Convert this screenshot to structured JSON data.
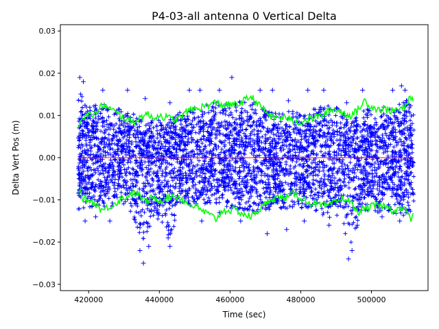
{
  "chart_data": {
    "type": "scatter",
    "title": "P4-03-all antenna 0 Vertical Delta",
    "xlabel": "Time (sec)",
    "ylabel": "Delta Vert Pos (m)",
    "xlim": [
      412000,
      516000
    ],
    "ylim": [
      -0.0315,
      0.0315
    ],
    "x_ticks": [
      420000,
      440000,
      460000,
      480000,
      500000
    ],
    "x_tick_labels": [
      "420000",
      "440000",
      "460000",
      "480000",
      "500000"
    ],
    "y_ticks": [
      -0.03,
      -0.02,
      -0.01,
      0.0,
      0.01,
      0.02,
      0.03
    ],
    "y_tick_labels": [
      "−0.03",
      "−0.02",
      "−0.01",
      "0.00",
      "0.01",
      "0.02",
      "0.03"
    ],
    "grid": false,
    "data_x_range": [
      417000,
      512000
    ],
    "series": [
      {
        "role": "vertical delta points",
        "marker": "+",
        "color": "#0000ff",
        "spread_profile": {
          "x": [
            417000,
            420000,
            425000,
            430000,
            433000,
            435000,
            438000,
            440000,
            443000,
            446000,
            450000,
            455000,
            460000,
            465000,
            470000,
            475000,
            480000,
            485000,
            489000,
            492000,
            494000,
            497000,
            500000,
            505000,
            510000,
            512000
          ],
          "upper": [
            0.016,
            0.012,
            0.013,
            0.011,
            0.011,
            0.009,
            0.009,
            0.009,
            0.009,
            0.011,
            0.012,
            0.013,
            0.013,
            0.014,
            0.012,
            0.011,
            0.011,
            0.012,
            0.013,
            0.011,
            0.009,
            0.011,
            0.012,
            0.012,
            0.014,
            0.012
          ],
          "lower": [
            -0.013,
            -0.012,
            -0.012,
            -0.011,
            -0.015,
            -0.02,
            -0.016,
            -0.015,
            -0.019,
            -0.012,
            -0.011,
            -0.011,
            -0.012,
            -0.013,
            -0.013,
            -0.012,
            -0.012,
            -0.013,
            -0.015,
            -0.018,
            -0.021,
            -0.014,
            -0.013,
            -0.013,
            -0.014,
            -0.012
          ]
        },
        "outliers": [
          {
            "x": 417500,
            "y": 0.019
          },
          {
            "x": 418500,
            "y": 0.018
          },
          {
            "x": 424000,
            "y": 0.016
          },
          {
            "x": 431000,
            "y": 0.016
          },
          {
            "x": 436000,
            "y": 0.014
          },
          {
            "x": 443000,
            "y": 0.013
          },
          {
            "x": 448500,
            "y": 0.016
          },
          {
            "x": 451500,
            "y": 0.016
          },
          {
            "x": 457000,
            "y": 0.016
          },
          {
            "x": 460500,
            "y": 0.019
          },
          {
            "x": 468500,
            "y": 0.016
          },
          {
            "x": 472000,
            "y": 0.016
          },
          {
            "x": 476500,
            "y": 0.0135
          },
          {
            "x": 482000,
            "y": 0.016
          },
          {
            "x": 486500,
            "y": 0.016
          },
          {
            "x": 493000,
            "y": 0.013
          },
          {
            "x": 497500,
            "y": 0.016
          },
          {
            "x": 506000,
            "y": 0.016
          },
          {
            "x": 508500,
            "y": 0.017
          },
          {
            "x": 509500,
            "y": 0.016
          },
          {
            "x": 419000,
            "y": -0.015
          },
          {
            "x": 422000,
            "y": -0.014
          },
          {
            "x": 426000,
            "y": -0.015
          },
          {
            "x": 434500,
            "y": -0.022
          },
          {
            "x": 435500,
            "y": -0.025
          },
          {
            "x": 437000,
            "y": -0.021
          },
          {
            "x": 442500,
            "y": -0.019
          },
          {
            "x": 443000,
            "y": -0.021
          },
          {
            "x": 452000,
            "y": -0.015
          },
          {
            "x": 457000,
            "y": -0.013
          },
          {
            "x": 463000,
            "y": -0.015
          },
          {
            "x": 470500,
            "y": -0.018
          },
          {
            "x": 476000,
            "y": -0.017
          },
          {
            "x": 481000,
            "y": -0.015
          },
          {
            "x": 488000,
            "y": -0.016
          },
          {
            "x": 493500,
            "y": -0.024
          },
          {
            "x": 494500,
            "y": -0.022
          },
          {
            "x": 496000,
            "y": -0.016
          },
          {
            "x": 503000,
            "y": -0.014
          },
          {
            "x": 508000,
            "y": -0.015
          }
        ]
      },
      {
        "role": "upper envelope",
        "type": "line",
        "color": "#00ff00",
        "x": [
          417000,
          418000,
          420000,
          422000,
          424000,
          426000,
          428000,
          430000,
          432000,
          434000,
          436000,
          438000,
          440000,
          442000,
          444000,
          446000,
          448000,
          450000,
          452000,
          454000,
          456000,
          458000,
          460000,
          462000,
          464000,
          466000,
          468000,
          470000,
          472000,
          474000,
          476000,
          478000,
          480000,
          482000,
          484000,
          486000,
          488000,
          490000,
          492000,
          494000,
          496000,
          498000,
          500000,
          502000,
          504000,
          506000,
          508000,
          510000,
          511000,
          512000
        ],
        "values": [
          0.0075,
          0.0095,
          0.01,
          0.0105,
          0.0125,
          0.0115,
          0.0105,
          0.0095,
          0.0085,
          0.009,
          0.0105,
          0.0095,
          0.01,
          0.0095,
          0.009,
          0.0095,
          0.011,
          0.0115,
          0.012,
          0.0125,
          0.013,
          0.0125,
          0.0125,
          0.0125,
          0.0135,
          0.0145,
          0.0125,
          0.011,
          0.0095,
          0.0095,
          0.0095,
          0.0085,
          0.0085,
          0.009,
          0.0095,
          0.01,
          0.011,
          0.0115,
          0.0105,
          0.01,
          0.011,
          0.0135,
          0.012,
          0.0115,
          0.0115,
          0.011,
          0.0115,
          0.012,
          0.015,
          0.0125
        ]
      },
      {
        "role": "lower envelope",
        "type": "line",
        "color": "#00ff00",
        "x": [
          417000,
          418000,
          420000,
          422000,
          424000,
          426000,
          428000,
          430000,
          432000,
          434000,
          436000,
          438000,
          440000,
          442000,
          444000,
          446000,
          448000,
          450000,
          452000,
          454000,
          456000,
          458000,
          460000,
          462000,
          464000,
          466000,
          468000,
          470000,
          472000,
          474000,
          476000,
          478000,
          480000,
          482000,
          484000,
          486000,
          488000,
          490000,
          492000,
          494000,
          496000,
          498000,
          500000,
          502000,
          504000,
          506000,
          508000,
          510000,
          511000,
          512000
        ],
        "values": [
          -0.007,
          -0.0095,
          -0.01,
          -0.011,
          -0.0125,
          -0.0115,
          -0.0105,
          -0.0095,
          -0.0085,
          -0.0085,
          -0.0105,
          -0.0095,
          -0.01,
          -0.0095,
          -0.009,
          -0.0095,
          -0.011,
          -0.0115,
          -0.0125,
          -0.0135,
          -0.0145,
          -0.0125,
          -0.0125,
          -0.0125,
          -0.0135,
          -0.014,
          -0.0125,
          -0.011,
          -0.0095,
          -0.0095,
          -0.0095,
          -0.0085,
          -0.0095,
          -0.0105,
          -0.011,
          -0.0115,
          -0.0115,
          -0.0105,
          -0.0095,
          -0.0105,
          -0.013,
          -0.012,
          -0.0115,
          -0.0115,
          -0.0115,
          -0.0125,
          -0.012,
          -0.0125,
          -0.015,
          -0.0125
        ]
      },
      {
        "role": "zero line",
        "type": "line",
        "color": "#ff0000",
        "x": [
          417000,
          512000
        ],
        "values": [
          0.0,
          0.0
        ]
      }
    ]
  }
}
